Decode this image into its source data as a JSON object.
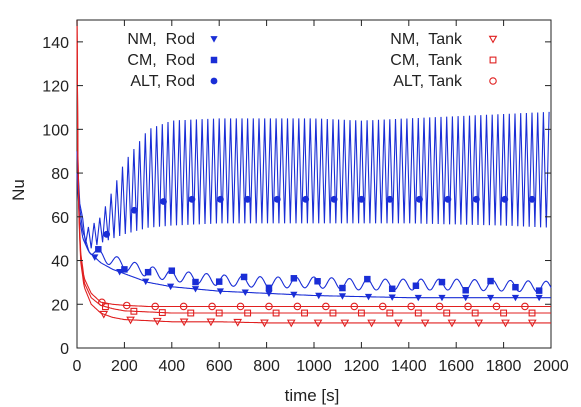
{
  "chart_data": {
    "type": "line",
    "title": "",
    "xlabel": "time [s]",
    "ylabel": "Nu",
    "xlim": [
      0,
      2000
    ],
    "ylim": [
      0,
      150
    ],
    "x_ticks": [
      0,
      200,
      400,
      600,
      800,
      1000,
      1200,
      1400,
      1600,
      1800,
      2000
    ],
    "y_ticks": [
      0,
      20,
      40,
      60,
      80,
      100,
      120,
      140
    ],
    "grid": false,
    "legend_placement": "top",
    "colors": {
      "rod": "#1a2ed6",
      "tank": "#e02020"
    },
    "series": [
      {
        "name": "NM,  Rod",
        "color": "#1a2ed6",
        "marker": "triangle-down",
        "x": [
          0,
          10,
          25,
          50,
          100,
          150,
          200,
          300,
          400,
          600,
          800,
          1000,
          1200,
          1400,
          1600,
          1800,
          2000
        ],
        "y": [
          80,
          60,
          50,
          44,
          39,
          36,
          34,
          30,
          28,
          26,
          25,
          24,
          23.5,
          23,
          23,
          23,
          23
        ],
        "marker_x": [
          75,
          180,
          290,
          395,
          500,
          605,
          710,
          810,
          915,
          1020,
          1120,
          1230,
          1330,
          1440,
          1540,
          1640,
          1745,
          1850,
          1950
        ]
      },
      {
        "name": "CM,  Rod",
        "color": "#1a2ed6",
        "marker": "square",
        "x": [
          0,
          10,
          25,
          50,
          100,
          200,
          300,
          400,
          600,
          800,
          1000,
          1200,
          1400,
          1600,
          1800,
          2000
        ],
        "y": [
          90,
          65,
          52,
          46,
          42,
          38,
          35,
          33,
          31,
          30,
          30,
          29,
          29,
          29,
          28.5,
          28
        ],
        "oscillation_amplitude": 2.5,
        "marker_x": [
          90,
          200,
          300,
          400,
          500,
          600,
          705,
          810,
          915,
          1015,
          1120,
          1225,
          1330,
          1430,
          1540,
          1640,
          1745,
          1850,
          1950
        ]
      },
      {
        "name": "ALT, Rod",
        "color": "#1a2ed6",
        "marker": "circle",
        "oscillation_upper": [
          [
            0,
            90
          ],
          [
            20,
            60
          ],
          [
            50,
            55
          ],
          [
            100,
            60
          ],
          [
            150,
            72
          ],
          [
            200,
            85
          ],
          [
            300,
            100
          ],
          [
            400,
            104
          ],
          [
            600,
            105
          ],
          [
            1000,
            105
          ],
          [
            1200,
            104
          ],
          [
            1400,
            105
          ],
          [
            1600,
            106
          ],
          [
            1800,
            107
          ],
          [
            2000,
            108
          ]
        ],
        "oscillation_lower": [
          [
            0,
            90
          ],
          [
            20,
            50
          ],
          [
            50,
            45
          ],
          [
            100,
            48
          ],
          [
            200,
            52
          ],
          [
            300,
            55
          ],
          [
            400,
            56
          ],
          [
            600,
            57
          ],
          [
            1000,
            57
          ],
          [
            1400,
            57
          ],
          [
            1800,
            56
          ],
          [
            2000,
            55
          ]
        ],
        "period": 24,
        "marker_x": [
          125,
          242,
          365,
          485,
          605,
          720,
          845,
          965,
          1085,
          1200,
          1320,
          1445,
          1565,
          1685,
          1805,
          1920
        ],
        "marker_y": [
          52,
          63,
          67,
          68,
          68,
          68,
          68,
          68,
          68,
          68,
          68,
          68,
          68,
          68,
          68,
          68
        ]
      },
      {
        "name": "NM,  Tank",
        "color": "#e02020",
        "marker": "triangle-down",
        "x": [
          0,
          5,
          15,
          30,
          60,
          100,
          150,
          200,
          300,
          400,
          600,
          800,
          1000,
          1400,
          2000
        ],
        "y": [
          150,
          70,
          40,
          28,
          20,
          16,
          14,
          13,
          12.5,
          12,
          12,
          11.5,
          11.5,
          11.5,
          11.5
        ],
        "marker_x": [
          113,
          226,
          339,
          452,
          565,
          678,
          791,
          904,
          1017,
          1130,
          1243,
          1356,
          1469,
          1582,
          1695,
          1808,
          1921
        ]
      },
      {
        "name": "CM,  Tank",
        "color": "#e02020",
        "marker": "square",
        "x": [
          0,
          5,
          15,
          30,
          60,
          100,
          150,
          200,
          300,
          400,
          600,
          800,
          1000,
          1400,
          2000
        ],
        "y": [
          150,
          72,
          42,
          30,
          23,
          19.5,
          18,
          17,
          16.5,
          16,
          16,
          16,
          16,
          16,
          16
        ],
        "marker_x": [
          120,
          240,
          360,
          480,
          600,
          720,
          840,
          960,
          1080,
          1200,
          1320,
          1440,
          1560,
          1680,
          1800,
          1920
        ]
      },
      {
        "name": "ALT, Tank",
        "color": "#e02020",
        "marker": "circle",
        "x": [
          0,
          5,
          15,
          30,
          60,
          100,
          150,
          200,
          300,
          400,
          600,
          800,
          1000,
          1400,
          2000
        ],
        "y": [
          150,
          74,
          44,
          32,
          25,
          21,
          20,
          19.5,
          19,
          19,
          19,
          19,
          19,
          19,
          19
        ],
        "marker_x": [
          105,
          210,
          330,
          450,
          570,
          690,
          810,
          930,
          1050,
          1170,
          1290,
          1410,
          1530,
          1650,
          1770,
          1890
        ]
      }
    ]
  }
}
